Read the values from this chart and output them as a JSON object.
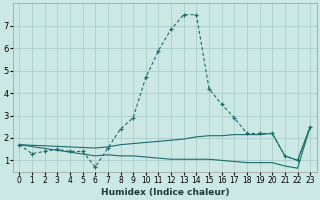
{
  "xlabel": "Humidex (Indice chaleur)",
  "bg_color": "#cce8e4",
  "grid_color": "#aaccca",
  "line_color": "#1a6b6b",
  "xlim": [
    -0.5,
    23.5
  ],
  "ylim": [
    0.5,
    8.0
  ],
  "xticks": [
    0,
    1,
    2,
    3,
    4,
    5,
    6,
    7,
    8,
    9,
    10,
    11,
    12,
    13,
    14,
    15,
    16,
    17,
    18,
    19,
    20,
    21,
    22,
    23
  ],
  "yticks": [
    1,
    2,
    3,
    4,
    5,
    6,
    7
  ],
  "series_main": {
    "x": [
      0,
      1,
      2,
      3,
      4,
      5,
      6,
      7,
      8,
      9,
      10,
      11,
      12,
      13,
      14,
      15,
      16,
      17,
      18,
      19,
      20,
      21,
      22,
      23
    ],
    "y": [
      1.7,
      1.3,
      1.4,
      1.5,
      1.4,
      1.4,
      0.7,
      1.55,
      2.4,
      2.9,
      4.7,
      5.9,
      6.85,
      7.5,
      7.5,
      4.2,
      3.5,
      2.9,
      2.2,
      2.2,
      2.2,
      1.2,
      1.0,
      2.5
    ]
  },
  "series_upper": {
    "x": [
      0,
      6,
      7,
      8,
      9,
      10,
      11,
      12,
      13,
      14,
      15,
      16,
      17,
      18,
      19,
      20,
      21,
      22,
      23
    ],
    "y": [
      1.7,
      1.55,
      1.6,
      1.7,
      1.75,
      1.8,
      1.85,
      1.9,
      1.95,
      2.05,
      2.1,
      2.1,
      2.15,
      2.15,
      2.15,
      2.2,
      1.2,
      1.0,
      2.5
    ]
  },
  "series_lower": {
    "x": [
      0,
      6,
      7,
      8,
      9,
      10,
      11,
      12,
      13,
      14,
      15,
      16,
      17,
      18,
      19,
      20,
      21,
      22,
      23
    ],
    "y": [
      1.7,
      1.2,
      1.25,
      1.2,
      1.2,
      1.15,
      1.1,
      1.05,
      1.05,
      1.05,
      1.05,
      1.0,
      0.95,
      0.9,
      0.9,
      0.9,
      0.75,
      0.65,
      2.5
    ]
  }
}
